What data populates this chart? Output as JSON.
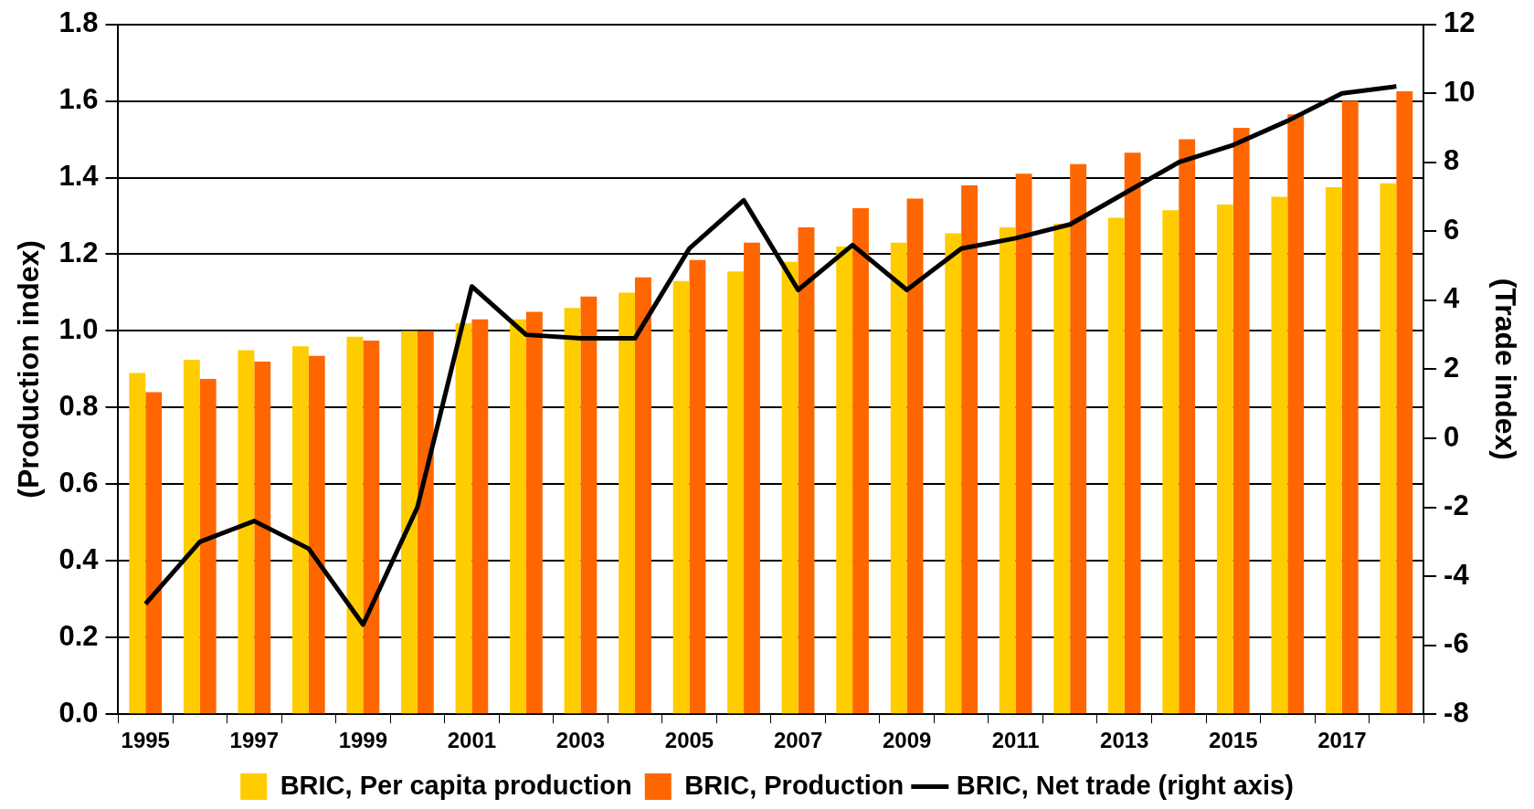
{
  "chart_data": {
    "type": "bar",
    "ylabel": "(Production index)",
    "y2label": "(Trade index)",
    "categories": [
      "1995",
      null,
      "1997",
      null,
      "1999",
      null,
      "2001",
      null,
      "2003",
      null,
      "2005",
      null,
      "2007",
      null,
      "2009",
      null,
      "2011",
      null,
      "2013",
      null,
      "2015",
      null,
      "2017",
      null
    ],
    "series": [
      {
        "name": "BRIC, Per capita production",
        "color": "#ffcc00",
        "values": [
          0.89,
          0.925,
          0.95,
          0.96,
          0.985,
          1.0,
          1.02,
          1.03,
          1.06,
          1.1,
          1.13,
          1.155,
          1.18,
          1.22,
          1.23,
          1.255,
          1.27,
          1.28,
          1.295,
          1.315,
          1.33,
          1.35,
          1.375,
          1.385
        ]
      },
      {
        "name": "BRIC, Production",
        "color": "#ff6600",
        "values": [
          0.84,
          0.875,
          0.92,
          0.935,
          0.975,
          1.0,
          1.03,
          1.05,
          1.09,
          1.14,
          1.185,
          1.23,
          1.27,
          1.32,
          1.345,
          1.38,
          1.41,
          1.435,
          1.465,
          1.5,
          1.53,
          1.565,
          1.6,
          1.625
        ]
      },
      {
        "name": "BRIC, Net trade (right axis)",
        "type": "line",
        "axis": "y2",
        "color": "#000000",
        "values": [
          -4.8,
          -3.0,
          -2.4,
          -3.2,
          -5.4,
          -2.0,
          4.4,
          3.0,
          2.9,
          2.9,
          5.5,
          6.9,
          4.3,
          5.6,
          4.3,
          5.5,
          5.8,
          6.2,
          7.1,
          8.0,
          8.5,
          9.2,
          10.0,
          10.2
        ]
      }
    ],
    "ylim": [
      0,
      1.8
    ],
    "yticks": [
      {
        "value": 0,
        "label": "0.0"
      },
      0.2,
      0.4,
      0.6,
      0.8,
      {
        "value": 1,
        "label": "1.0"
      },
      1.2,
      1.4,
      1.6,
      1.8
    ],
    "y2lim": [
      -8,
      12
    ],
    "y2ticks": [
      -8,
      -6,
      -4,
      -2,
      0,
      2,
      4,
      6,
      8,
      10,
      12
    ],
    "grid": "y",
    "legend": "bottom"
  }
}
